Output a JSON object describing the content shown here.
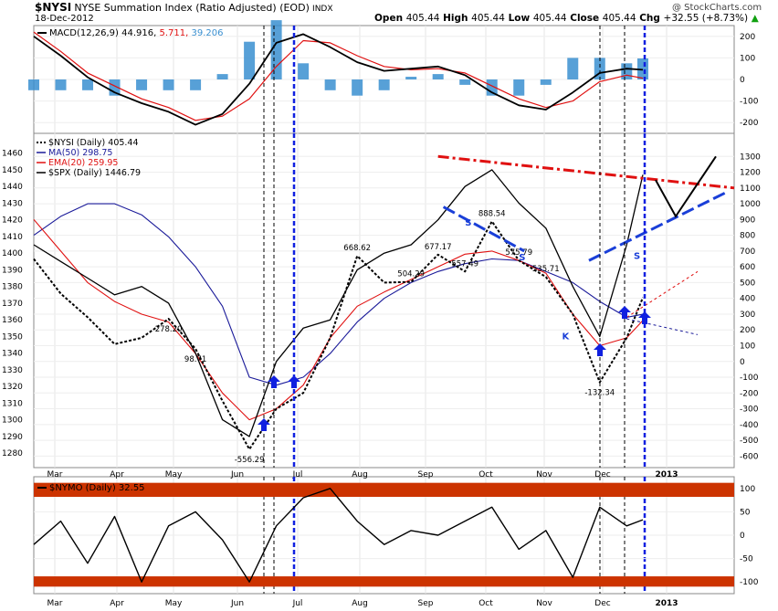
{
  "header": {
    "symbol": "$NYSI",
    "description": "NYSE Summation Index (Ratio Adjusted) (EOD)",
    "exchange": "INDX",
    "date": "18-Dec-2012",
    "watermark": "@ StockCharts.com",
    "open_label": "Open",
    "open": "405.44",
    "high_label": "High",
    "high": "405.44",
    "low_label": "Low",
    "low": "405.44",
    "close_label": "Close",
    "close": "405.44",
    "chg_label": "Chg",
    "chg": "+32.55 (+8.73%)",
    "chg_arrow": "▲"
  },
  "colors": {
    "price": "#000000",
    "ma50": "#1a1a99",
    "ema20": "#e01010",
    "spx": "#000000",
    "histogram": "#3a8fd0",
    "signal": "#e01010",
    "markers": "#1020e0",
    "trendline_red": "#e01010",
    "neckline_blue": "#1a3fd8",
    "band": "#cc3300"
  },
  "x_axis": {
    "months": [
      "Mar",
      "Apr",
      "May",
      "Jun",
      "Jul",
      "Aug",
      "Sep",
      "Oct",
      "Nov",
      "Dec",
      "2013"
    ]
  },
  "chart_data": [
    {
      "type": "line",
      "panel": "MACD",
      "legend": {
        "label": "MACD(12,26,9)",
        "macd": "44.916",
        "signal": "5.711",
        "histogram": "39.206"
      },
      "ylim": [
        -250,
        250
      ],
      "yticks": [
        200,
        100,
        0,
        -100,
        -200
      ],
      "x": [
        0,
        10,
        20,
        30,
        40,
        50,
        60,
        70,
        80,
        90,
        100,
        110,
        120,
        130,
        140,
        150,
        160,
        170,
        180,
        190,
        200,
        210,
        220,
        226
      ],
      "series": [
        {
          "name": "MACD",
          "values": [
            200,
            110,
            10,
            -60,
            -110,
            -150,
            -210,
            -160,
            -20,
            170,
            210,
            150,
            80,
            40,
            50,
            60,
            20,
            -60,
            -120,
            -140,
            -60,
            30,
            50,
            45
          ]
        },
        {
          "name": "Signal",
          "values": [
            220,
            130,
            30,
            -30,
            -90,
            -130,
            -190,
            -170,
            -90,
            60,
            180,
            170,
            110,
            60,
            45,
            50,
            30,
            -30,
            -90,
            -130,
            -100,
            -10,
            20,
            6
          ]
        }
      ]
    },
    {
      "type": "line",
      "panel": "main",
      "legend": [
        {
          "label": "$NYSI (Daily)",
          "value": "405.44"
        },
        {
          "label": "MA(50)",
          "value": "298.75"
        },
        {
          "label": "EMA(20)",
          "value": "259.95"
        },
        {
          "label": "$SPX (Daily)",
          "value": "1446.79"
        }
      ],
      "y_left_ticks": [
        1460,
        1450,
        1440,
        1430,
        1420,
        1410,
        1400,
        1390,
        1380,
        1370,
        1360,
        1350,
        1340,
        1330,
        1320,
        1310,
        1300,
        1290,
        1280
      ],
      "y_right_ticks": [
        1300,
        1200,
        1100,
        1000,
        900,
        800,
        700,
        600,
        500,
        400,
        300,
        200,
        100,
        0,
        -100,
        -200,
        -300,
        -400,
        -500,
        -600
      ],
      "ylim_right": [
        -650,
        1400
      ],
      "ylim_left": [
        1273.5,
        1467.5
      ],
      "x": [
        0,
        10,
        20,
        30,
        40,
        50,
        60,
        70,
        80,
        90,
        100,
        110,
        120,
        130,
        140,
        150,
        160,
        170,
        180,
        190,
        200,
        210,
        220,
        226
      ],
      "series": [
        {
          "name": "$NYSI",
          "values": [
            650,
            430,
            280,
            110,
            150,
            270,
            80,
            -250,
            -556,
            -300,
            -200,
            150,
            669,
            500,
            504,
            677,
            570,
            888,
            640,
            536,
            300,
            -132,
            150,
            405
          ]
        },
        {
          "name": "MA(50)",
          "values": [
            800,
            920,
            1000,
            1000,
            930,
            790,
            600,
            350,
            -100,
            -150,
            -100,
            50,
            250,
            400,
            500,
            570,
            620,
            650,
            640,
            570,
            500,
            380,
            280,
            299
          ]
        },
        {
          "name": "EMA(20)",
          "values": [
            900,
            700,
            500,
            380,
            300,
            250,
            50,
            -200,
            -370,
            -300,
            -150,
            150,
            350,
            440,
            520,
            600,
            680,
            700,
            640,
            560,
            300,
            100,
            150,
            260
          ]
        },
        {
          "name": "$SPX",
          "values": [
            1405,
            1395,
            1385,
            1375,
            1380,
            1370,
            1340,
            1300,
            1290,
            1335,
            1355,
            1360,
            1390,
            1400,
            1405,
            1420,
            1440,
            1450,
            1430,
            1415,
            1380,
            1350,
            1405,
            1447
          ]
        }
      ],
      "annotations": [
        "-556.29",
        "98.71",
        "278.20",
        "668.62",
        "504.29",
        "677.17",
        "557.49",
        "888.54",
        "575.79",
        "535.71",
        "-132.34",
        "S",
        "S",
        "S",
        "K"
      ]
    },
    {
      "type": "line",
      "panel": "NYMO",
      "legend": {
        "label": "$NYMO (Daily)",
        "value": "32.55"
      },
      "ylim": [
        -125,
        125
      ],
      "yticks": [
        100,
        50,
        0,
        -50,
        -100
      ],
      "x": [
        0,
        10,
        20,
        30,
        40,
        50,
        60,
        70,
        80,
        90,
        100,
        110,
        120,
        130,
        140,
        150,
        160,
        170,
        180,
        190,
        200,
        210,
        220,
        226
      ],
      "series": [
        {
          "name": "$NYMO",
          "values": [
            -20,
            30,
            -60,
            40,
            -100,
            20,
            50,
            -10,
            -100,
            20,
            80,
            100,
            30,
            -20,
            10,
            0,
            30,
            60,
            -30,
            10,
            -90,
            60,
            20,
            33
          ]
        }
      ]
    }
  ]
}
